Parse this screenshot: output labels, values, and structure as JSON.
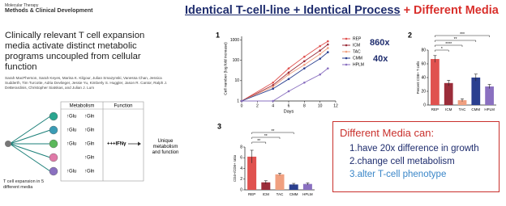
{
  "slide": {
    "headline_part1": "Identical T-cell-line + Identical Process",
    "headline_part2": "+ Different Media",
    "box_title": "Different Media can:",
    "box_items": [
      "1.have 20x difference in growth",
      "2.change cell metabolism",
      "3.alter T-cell phenotype"
    ]
  },
  "paper": {
    "journal": "Molecular Therapy",
    "journal_sub": "Methods & Clinical Development",
    "title": "Clinically relevant T cell expansion media activate distinct metabolic programs uncoupled from cellular function",
    "authors": "Sarah MacPherson, Sarah Keyes, Marisa K. Kilgour, Julian Smazynski, Vanessa Chan, Jessica Sudderth, Tim Turcotte, Adria Devlieger, Jessie Yu, Kimberly S. Huggler, Jason R. Cantor, Ralph J. DeBerardinis, Christopher Siatskas, and Julian J. Lum"
  },
  "abstract": {
    "header_metabolism": "Metabolism",
    "header_function": "Function",
    "rows": [
      {
        "glu": "↑Glu",
        "gln": "↑Gln"
      },
      {
        "glu": "↑Glu",
        "gln": "↑Gln"
      },
      {
        "glu": "↑Glu",
        "gln": "↑Gln",
        "function": "+++IFNγ"
      },
      {
        "gln": "↑Gln"
      },
      {
        "glu": "↑Glu",
        "gln": "↑Gln"
      }
    ],
    "outcome": "Unique metabolism and function",
    "source": "T cell expansion in 5 different media"
  },
  "chart_data": [
    {
      "type": "line",
      "panel": "1",
      "ylabel": "Cell number (log fold increase)",
      "xlabel": "Days",
      "x": [
        0,
        4,
        6,
        8,
        10,
        11
      ],
      "xlim": [
        0,
        12
      ],
      "xticks": [
        0,
        2,
        4,
        6,
        8,
        10,
        12
      ],
      "log_y": true,
      "ylim": [
        1,
        1500
      ],
      "yticks": [
        1,
        10,
        100,
        1000
      ],
      "series": [
        {
          "name": "REP",
          "color": "#e0524f",
          "values": [
            1,
            8,
            40,
            150,
            500,
            860
          ]
        },
        {
          "name": "ICM",
          "color": "#9b2d3a",
          "values": [
            1,
            6,
            25,
            90,
            300,
            600
          ]
        },
        {
          "name": "TAC",
          "color": "#f0a080",
          "values": [
            1,
            5,
            20,
            60,
            200,
            400
          ]
        },
        {
          "name": "CMM",
          "color": "#2a3f8f",
          "values": [
            1,
            4,
            12,
            40,
            120,
            250
          ]
        },
        {
          "name": "HPLM",
          "color": "#8a70c0",
          "values": [
            1,
            1,
            3,
            8,
            20,
            40
          ]
        }
      ],
      "annotations": [
        "860x",
        "40x"
      ]
    },
    {
      "type": "bar",
      "panel": "2",
      "ylabel": "Percent CD8+ T cells",
      "categories": [
        "REP",
        "ICM",
        "TAC",
        "CMM",
        "HPLM"
      ],
      "values": [
        67,
        32,
        7,
        40,
        27
      ],
      "errors": [
        5,
        4,
        2,
        5,
        3
      ],
      "colors": [
        "#e0524f",
        "#9b2d3a",
        "#f0a080",
        "#2a3f8f",
        "#8a70c0"
      ],
      "ylim": [
        0,
        80
      ],
      "yticks": [
        0,
        20,
        40,
        60,
        80
      ],
      "significance": [
        {
          "pair": [
            "REP",
            "HPLM"
          ],
          "label": "***"
        },
        {
          "pair": [
            "REP",
            "CMM"
          ],
          "label": "**"
        },
        {
          "pair": [
            "REP",
            "TAC"
          ],
          "label": "****"
        },
        {
          "pair": [
            "REP",
            "ICM"
          ],
          "label": "*"
        }
      ]
    },
    {
      "type": "bar",
      "panel": "3",
      "ylabel": "CD4+/CD8+ ratio",
      "categories": [
        "REP",
        "ICM",
        "TAC",
        "CMM",
        "HPLM"
      ],
      "values": [
        6.2,
        1.4,
        2.9,
        1.0,
        1.1
      ],
      "errors": [
        1.2,
        0.3,
        0.2,
        0.2,
        0.2
      ],
      "colors": [
        "#e0524f",
        "#9b2d3a",
        "#f0a080",
        "#2a3f8f",
        "#8a70c0"
      ],
      "ylim": [
        0,
        8
      ],
      "yticks": [
        0,
        2,
        4,
        6,
        8
      ],
      "significance": [
        {
          "pair": [
            "REP",
            "CMM"
          ],
          "label": "**"
        },
        {
          "pair": [
            "REP",
            "TAC"
          ],
          "label": "**"
        },
        {
          "pair": [
            "REP",
            "ICM"
          ],
          "label": "**"
        }
      ]
    }
  ]
}
